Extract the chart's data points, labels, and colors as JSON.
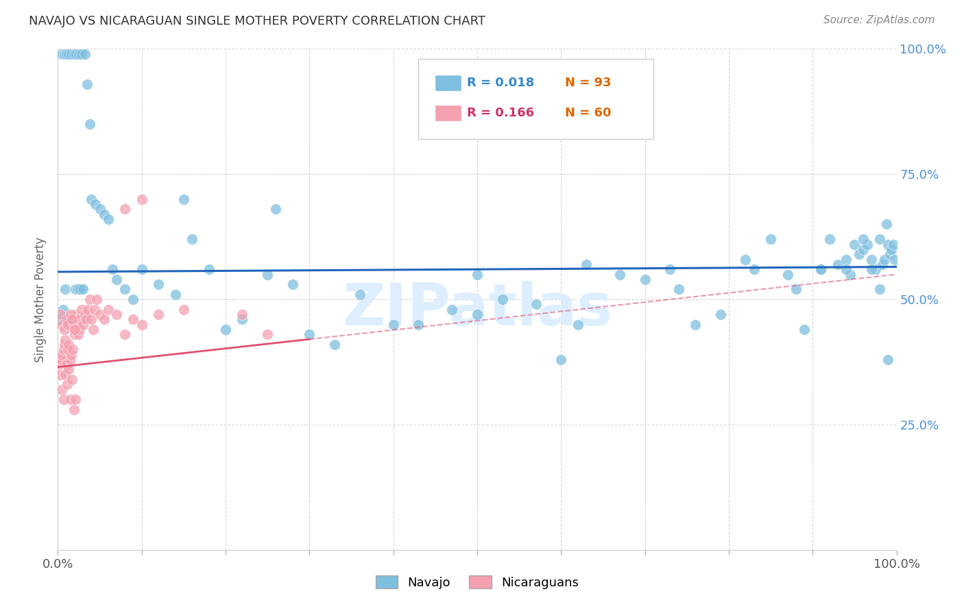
{
  "title": "NAVAJO VS NICARAGUAN SINGLE MOTHER POVERTY CORRELATION CHART",
  "source": "Source: ZipAtlas.com",
  "ylabel": "Single Mother Poverty",
  "xlim": [
    0,
    1
  ],
  "ylim": [
    0,
    1
  ],
  "y_tick_positions_right": [
    0.25,
    0.5,
    0.75,
    1.0
  ],
  "y_tick_labels_right": [
    "25.0%",
    "50.0%",
    "75.0%",
    "100.0%"
  ],
  "navajo_R": 0.018,
  "navajo_N": 93,
  "nicaraguan_R": 0.166,
  "nicaraguan_N": 60,
  "navajo_color": "#7fbfdf",
  "nicaraguan_color": "#f4a0b0",
  "navajo_line_color": "#2266bb",
  "nicaraguan_line_color": "#e05070",
  "right_label_color": "#4a90d9",
  "background_color": "#ffffff",
  "grid_color": "#cccccc",
  "watermark_color": "#ddeeff",
  "legend_R_color_navajo": "#3388cc",
  "legend_R_color_nicaraguan": "#cc3366",
  "legend_N_color": "#dd6600",
  "navajo_line_y_intercept": 0.555,
  "navajo_line_slope": 0.01,
  "nicaraguan_line_y_intercept": 0.365,
  "nicaraguan_line_slope": 0.185,
  "navajo_x": [
    0.005,
    0.008,
    0.01,
    0.013,
    0.016,
    0.019,
    0.022,
    0.025,
    0.028,
    0.032,
    0.035,
    0.038,
    0.04,
    0.045,
    0.05,
    0.055,
    0.06,
    0.065,
    0.07,
    0.08,
    0.09,
    0.1,
    0.12,
    0.14,
    0.16,
    0.18,
    0.2,
    0.22,
    0.25,
    0.28,
    0.3,
    0.33,
    0.36,
    0.4,
    0.43,
    0.47,
    0.5,
    0.53,
    0.57,
    0.6,
    0.63,
    0.67,
    0.7,
    0.73,
    0.76,
    0.79,
    0.82,
    0.85,
    0.87,
    0.89,
    0.91,
    0.92,
    0.93,
    0.94,
    0.945,
    0.95,
    0.955,
    0.96,
    0.965,
    0.97,
    0.975,
    0.98,
    0.983,
    0.986,
    0.988,
    0.99,
    0.992,
    0.994,
    0.996,
    0.998,
    0.003,
    0.006,
    0.009,
    0.012,
    0.015,
    0.018,
    0.021,
    0.024,
    0.027,
    0.03,
    0.15,
    0.26,
    0.5,
    0.62,
    0.74,
    0.83,
    0.88,
    0.91,
    0.94,
    0.96,
    0.97,
    0.98,
    0.99
  ],
  "navajo_y": [
    0.99,
    0.99,
    0.99,
    0.99,
    0.99,
    0.99,
    0.99,
    0.99,
    0.99,
    0.99,
    0.93,
    0.85,
    0.7,
    0.69,
    0.68,
    0.67,
    0.66,
    0.56,
    0.54,
    0.52,
    0.5,
    0.56,
    0.53,
    0.51,
    0.62,
    0.56,
    0.44,
    0.46,
    0.55,
    0.53,
    0.43,
    0.41,
    0.51,
    0.45,
    0.45,
    0.48,
    0.47,
    0.5,
    0.49,
    0.38,
    0.57,
    0.55,
    0.54,
    0.56,
    0.45,
    0.47,
    0.58,
    0.62,
    0.55,
    0.44,
    0.56,
    0.62,
    0.57,
    0.58,
    0.55,
    0.61,
    0.59,
    0.6,
    0.61,
    0.58,
    0.56,
    0.62,
    0.57,
    0.58,
    0.65,
    0.61,
    0.59,
    0.6,
    0.61,
    0.58,
    0.46,
    0.48,
    0.52,
    0.46,
    0.46,
    0.46,
    0.52,
    0.52,
    0.52,
    0.52,
    0.7,
    0.68,
    0.55,
    0.45,
    0.52,
    0.56,
    0.52,
    0.56,
    0.56,
    0.62,
    0.56,
    0.52,
    0.38
  ],
  "nicaraguan_x": [
    0.002,
    0.004,
    0.005,
    0.007,
    0.008,
    0.009,
    0.01,
    0.012,
    0.013,
    0.015,
    0.016,
    0.018,
    0.019,
    0.02,
    0.021,
    0.022,
    0.024,
    0.025,
    0.026,
    0.028,
    0.03,
    0.032,
    0.034,
    0.036,
    0.038,
    0.04,
    0.042,
    0.044,
    0.046,
    0.05,
    0.055,
    0.06,
    0.07,
    0.08,
    0.09,
    0.1,
    0.12,
    0.15,
    0.22,
    0.25,
    0.003,
    0.005,
    0.007,
    0.009,
    0.011,
    0.013,
    0.015,
    0.017,
    0.019,
    0.021,
    0.003,
    0.005,
    0.008,
    0.01,
    0.012,
    0.015,
    0.017,
    0.02,
    0.08,
    0.1
  ],
  "nicaraguan_y": [
    0.37,
    0.38,
    0.39,
    0.4,
    0.41,
    0.42,
    0.37,
    0.4,
    0.41,
    0.38,
    0.39,
    0.4,
    0.44,
    0.43,
    0.47,
    0.45,
    0.43,
    0.46,
    0.44,
    0.48,
    0.45,
    0.47,
    0.46,
    0.48,
    0.5,
    0.46,
    0.44,
    0.48,
    0.5,
    0.47,
    0.46,
    0.48,
    0.47,
    0.43,
    0.46,
    0.45,
    0.47,
    0.48,
    0.47,
    0.43,
    0.35,
    0.32,
    0.3,
    0.35,
    0.33,
    0.36,
    0.3,
    0.34,
    0.28,
    0.3,
    0.47,
    0.45,
    0.44,
    0.46,
    0.45,
    0.47,
    0.46,
    0.44,
    0.68,
    0.7
  ]
}
